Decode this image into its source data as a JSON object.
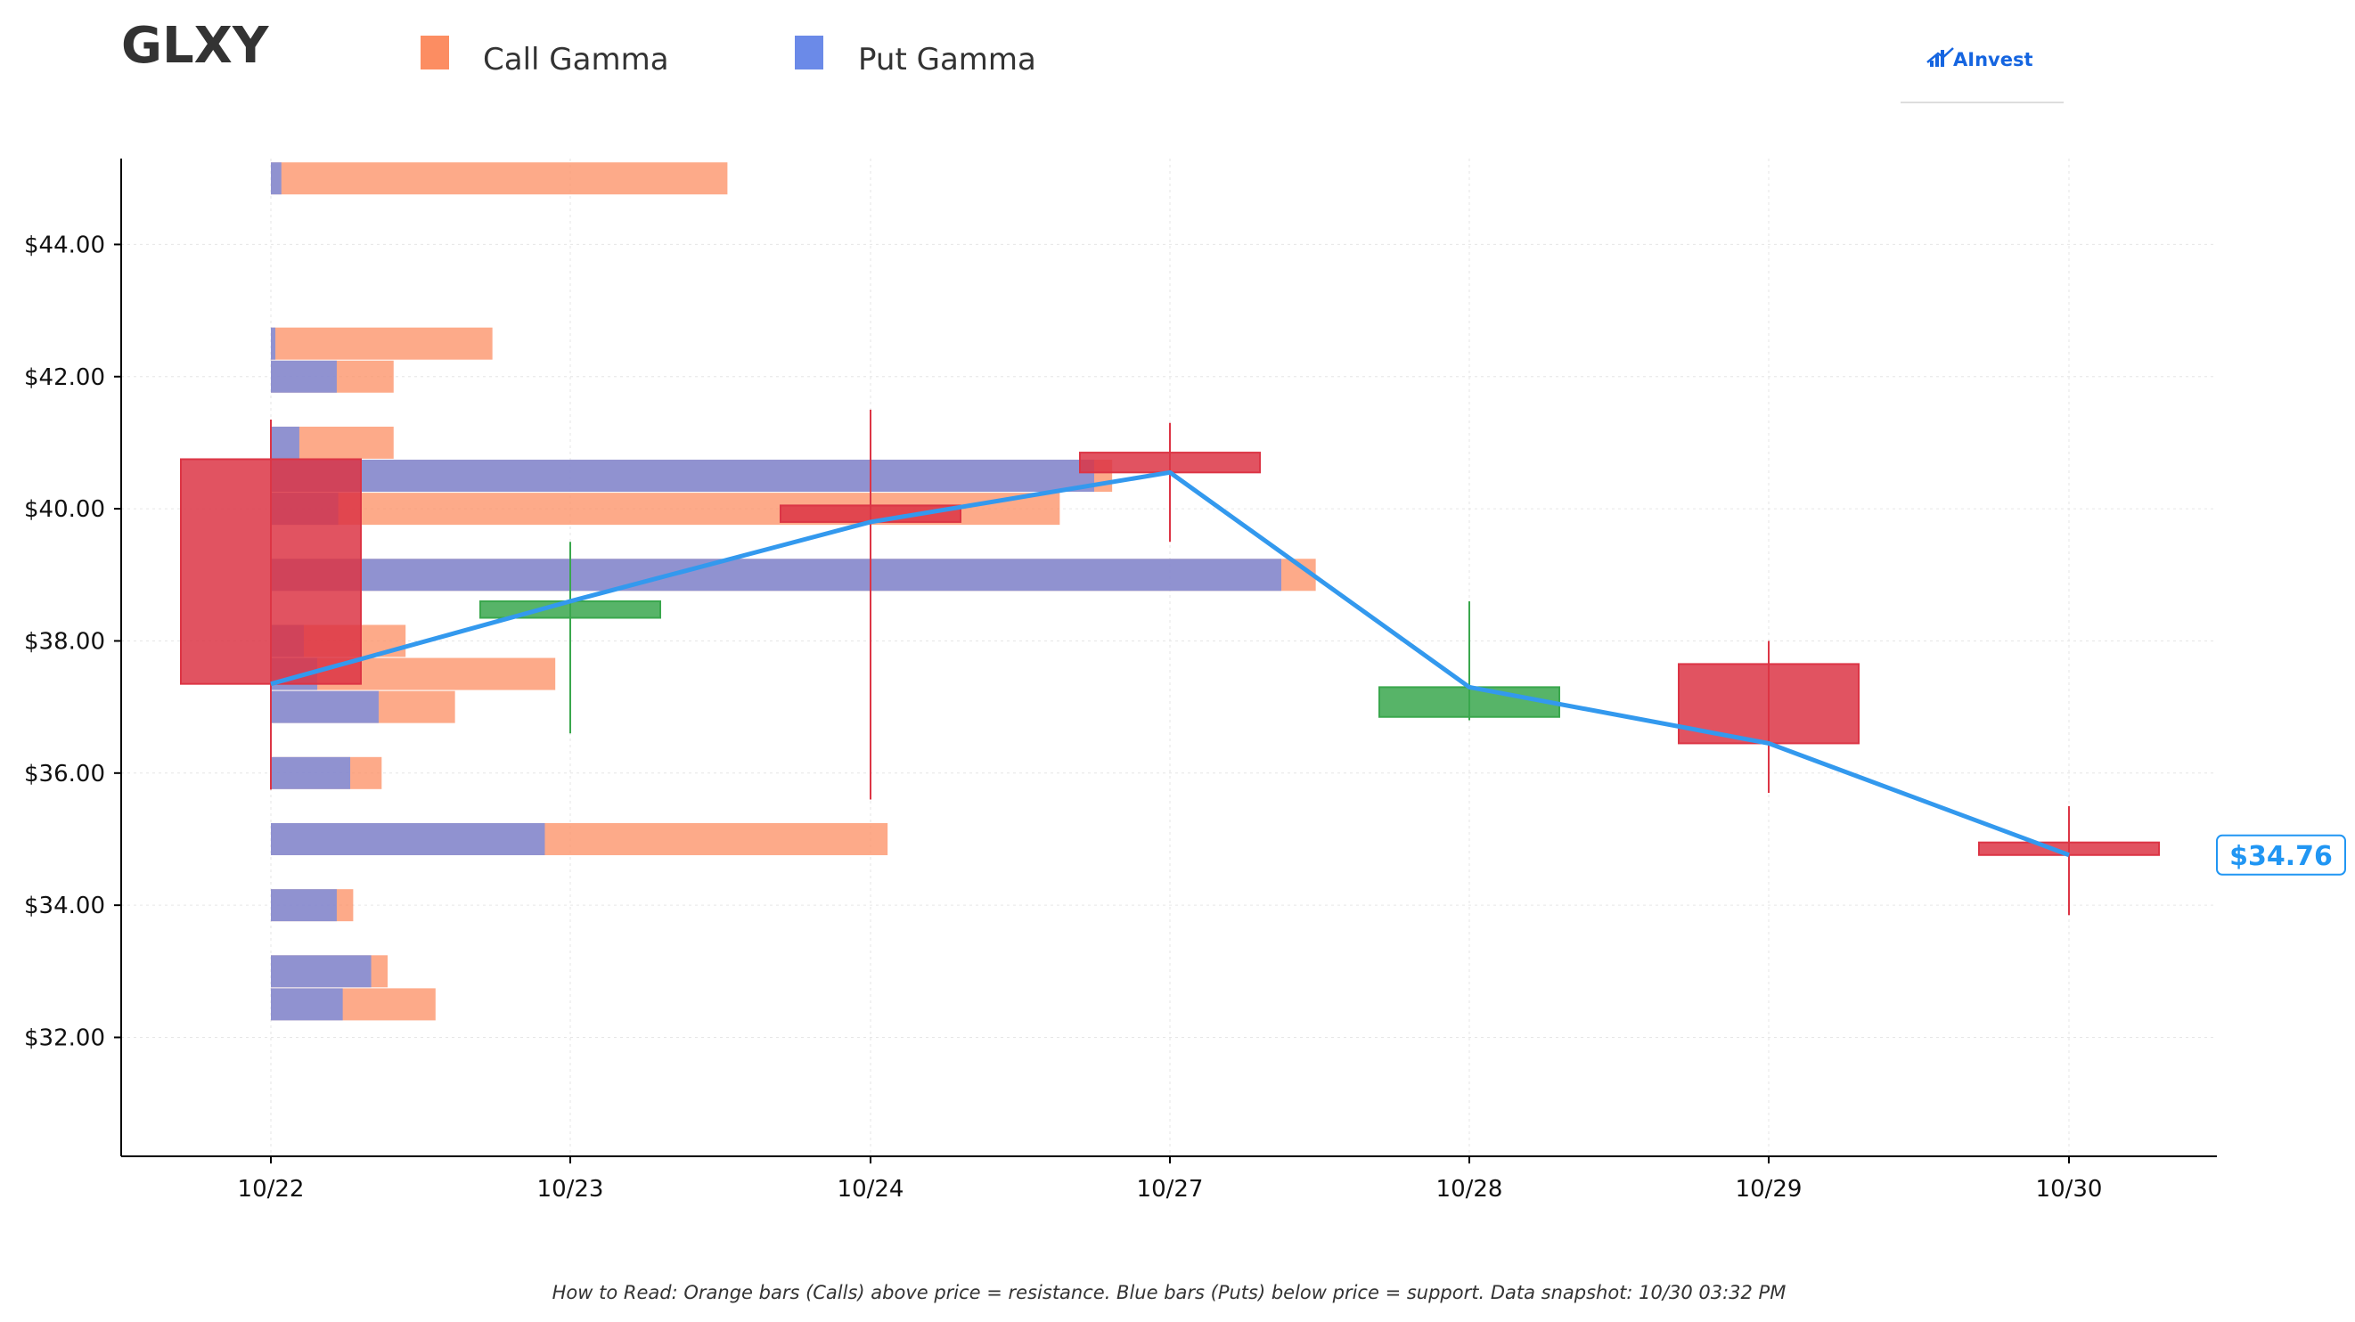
{
  "header": {
    "ticker": "GLXY",
    "logo_text": "AInvest"
  },
  "legend": [
    {
      "label": "Call Gamma",
      "color": "#fc8d62"
    },
    {
      "label": "Put Gamma",
      "color": "#6b8ae8"
    }
  ],
  "footer": {
    "note": "How to Read: Orange bars (Calls) above price = resistance. Blue bars (Puts) below price = support. Data snapshot: 10/30 03:32 PM"
  },
  "chart_data": {
    "type": "candlestick",
    "x_labels": [
      "10/22",
      "10/23",
      "10/24",
      "10/27",
      "10/28",
      "10/29",
      "10/30"
    ],
    "y_ticks": [
      32,
      34,
      36,
      38,
      40,
      42,
      44
    ],
    "y_tick_labels": [
      "$32.00",
      "$34.00",
      "$36.00",
      "$38.00",
      "$40.00",
      "$42.00",
      "$44.00"
    ],
    "ylim": [
      30.2,
      45.3
    ],
    "grid": true,
    "candles": [
      {
        "date": "10/22",
        "open": 40.75,
        "high": 41.35,
        "low": 35.75,
        "close": 37.35
      },
      {
        "date": "10/23",
        "open": 38.35,
        "high": 39.5,
        "low": 36.6,
        "close": 38.6
      },
      {
        "date": "10/24",
        "open": 40.05,
        "high": 41.5,
        "low": 35.6,
        "close": 39.8
      },
      {
        "date": "10/27",
        "open": 40.85,
        "high": 41.3,
        "low": 39.5,
        "close": 40.55
      },
      {
        "date": "10/28",
        "open": 36.85,
        "high": 38.6,
        "low": 36.8,
        "close": 37.3
      },
      {
        "date": "10/29",
        "open": 37.65,
        "high": 38.0,
        "low": 35.7,
        "close": 36.45
      },
      {
        "date": "10/30",
        "open": 34.95,
        "high": 35.5,
        "low": 33.85,
        "close": 34.76
      }
    ],
    "close_line": {
      "color": "#3399ee",
      "values": [
        37.35,
        38.6,
        39.8,
        40.55,
        37.3,
        36.45,
        34.76
      ]
    },
    "gamma_bars": [
      {
        "strike": 45.0,
        "call": 3.05,
        "put": 0.07
      },
      {
        "strike": 42.5,
        "call": 1.48,
        "put": 0.03
      },
      {
        "strike": 42.0,
        "call": 0.82,
        "put": 0.44
      },
      {
        "strike": 41.0,
        "call": 0.82,
        "put": 0.19
      },
      {
        "strike": 40.5,
        "call": 5.62,
        "put": 5.5
      },
      {
        "strike": 40.0,
        "call": 5.27,
        "put": 0.45
      },
      {
        "strike": 39.0,
        "call": 6.98,
        "put": 6.75
      },
      {
        "strike": 38.0,
        "call": 0.9,
        "put": 0.22
      },
      {
        "strike": 37.5,
        "call": 1.9,
        "put": 0.31
      },
      {
        "strike": 37.0,
        "call": 1.23,
        "put": 0.72
      },
      {
        "strike": 36.0,
        "call": 0.74,
        "put": 0.53
      },
      {
        "strike": 35.0,
        "call": 4.12,
        "put": 1.83
      },
      {
        "strike": 34.0,
        "call": 0.55,
        "put": 0.44
      },
      {
        "strike": 33.0,
        "call": 0.78,
        "put": 0.67
      },
      {
        "strike": 32.5,
        "call": 1.1,
        "put": 0.48
      }
    ],
    "last_price": 34.76,
    "last_price_label": "$34.76",
    "colors": {
      "up": "#3aa74d",
      "down": "#dc3545",
      "call": "#fc8d62",
      "put": "#6b8ae8"
    }
  }
}
